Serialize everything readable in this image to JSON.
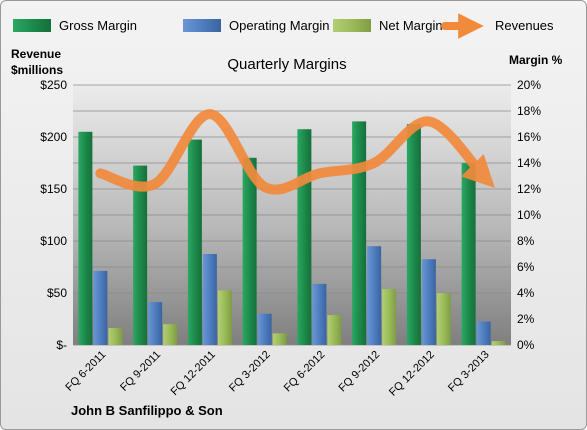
{
  "chart_data": {
    "type": "bar",
    "title": "Quarterly Margins",
    "company": "John B Sanfilippo & Son",
    "left_axis": {
      "label_line1": "Revenue",
      "label_line2": "$millions",
      "ticks": [
        "$-",
        "$50",
        "$100",
        "$150",
        "$200",
        "$250"
      ],
      "ylim": [
        0,
        250
      ]
    },
    "right_axis": {
      "label": "Margin %",
      "ticks": [
        "0%",
        "2%",
        "4%",
        "6%",
        "8%",
        "10%",
        "12%",
        "14%",
        "16%",
        "18%",
        "20%"
      ],
      "ylim": [
        0,
        20
      ]
    },
    "categories": [
      "FQ 6-2011",
      "FQ 9-2011",
      "FQ 12-2011",
      "FQ 3-2012",
      "FQ 6-2012",
      "FQ 9-2012",
      "FQ 12-2012",
      "FQ 3-2013"
    ],
    "series": [
      {
        "name": "Gross Margin",
        "axis": "right",
        "color": "#1f8a4c",
        "values": [
          16.4,
          13.8,
          15.8,
          14.4,
          16.6,
          17.2,
          17.0,
          14.0
        ]
      },
      {
        "name": "Operating Margin",
        "axis": "right",
        "color": "#4f7ec0",
        "values": [
          5.7,
          3.3,
          7.0,
          2.4,
          4.7,
          7.6,
          6.6,
          1.8
        ]
      },
      {
        "name": "Net Margin",
        "axis": "right",
        "color": "#9bbb59",
        "values": [
          1.3,
          1.6,
          4.2,
          0.9,
          2.3,
          4.3,
          4.0,
          0.3
        ]
      },
      {
        "name": "Revenues",
        "axis": "left",
        "type": "line",
        "color": "#f28a3c",
        "values": [
          165,
          155,
          222,
          152,
          165,
          175,
          215,
          162
        ]
      }
    ],
    "grid": true,
    "legend": "top"
  }
}
